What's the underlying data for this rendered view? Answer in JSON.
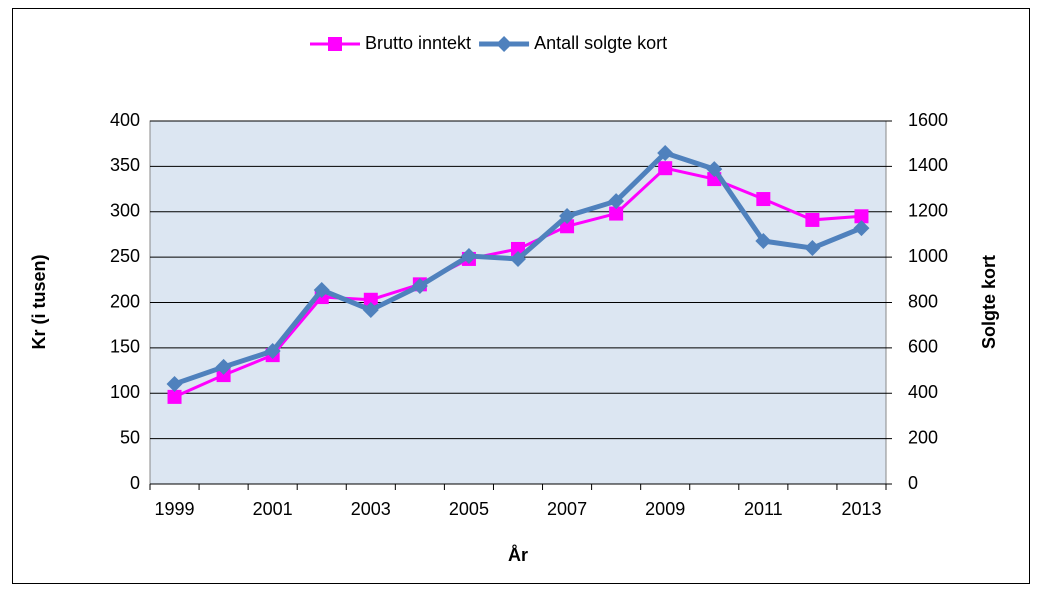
{
  "chart_data": {
    "type": "line",
    "x_label": "År",
    "y_label": "Kr (i tusen)",
    "y2_label": "Solgte kort",
    "categories": [
      "1999",
      null,
      "2001",
      null,
      "2003",
      null,
      "2005",
      null,
      "2007",
      null,
      "2009",
      null,
      "2011",
      null,
      "2013"
    ],
    "series": [
      {
        "name": "Brutto inntekt",
        "color": "#ff00ff",
        "marker": "square",
        "values": [
          96,
          120,
          142,
          206,
          203,
          220,
          248,
          259,
          284,
          298,
          348,
          336,
          314,
          291,
          295
        ]
      },
      {
        "name": "Antall solgte kort",
        "color": "#4f81bd",
        "marker": "diamond",
        "axis": "y2",
        "values": [
          441,
          516,
          586,
          855,
          767,
          873,
          1005,
          992,
          1181,
          1247,
          1459,
          1388,
          1071,
          1040,
          1128
        ]
      }
    ],
    "ylim": [
      0,
      400
    ],
    "yticks": [
      0,
      50,
      100,
      150,
      200,
      250,
      300,
      350,
      400
    ],
    "y2lim": [
      0,
      1600
    ],
    "y2ticks": [
      0,
      200,
      400,
      600,
      800,
      1000,
      1200,
      1400,
      1600
    ],
    "grid": true,
    "legend": "top"
  }
}
